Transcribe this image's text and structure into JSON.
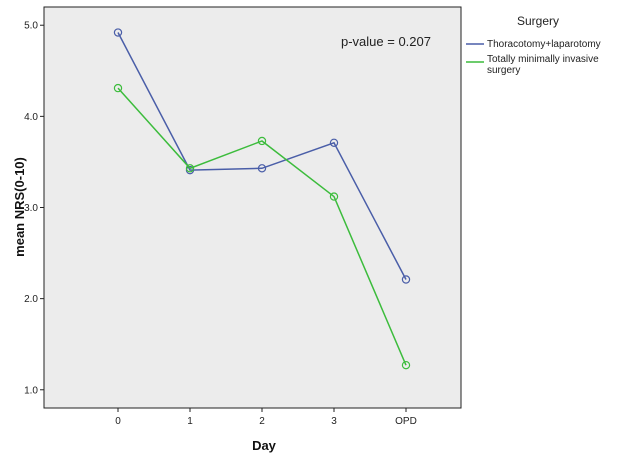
{
  "chart_data": {
    "type": "line",
    "categories": [
      "0",
      "1",
      "2",
      "3",
      "OPD"
    ],
    "xlabel": "Day",
    "ylabel": "mean NRS(0-10)",
    "ylim": [
      0.8,
      5.2
    ],
    "yticks": [
      "1.0",
      "2.0",
      "3.0",
      "4.0",
      "5.0"
    ],
    "grid": false,
    "plot_background": "#ececec",
    "legend": {
      "title": "Surgery",
      "placement": "right"
    },
    "annotation": "p-value = 0.207",
    "series": [
      {
        "name": "Thoracotomy+laparotomy",
        "color": "#4a5ea8",
        "values": [
          4.92,
          3.41,
          3.43,
          3.71,
          2.21
        ]
      },
      {
        "name": "Totally minimally invasive surgery",
        "color": "#3cbc3c",
        "values": [
          4.31,
          3.43,
          3.73,
          3.12,
          1.27
        ]
      }
    ]
  }
}
